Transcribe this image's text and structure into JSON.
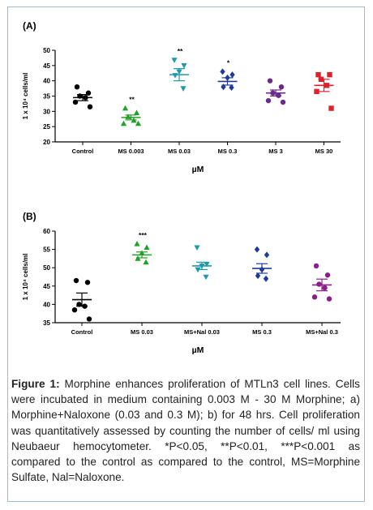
{
  "chart_data": [
    {
      "type": "scatter",
      "panel": "(A)",
      "ylabel": "1 x 10⁴ cells/ml",
      "xlabel": "µM",
      "ylim": [
        20,
        50
      ],
      "yticks": [
        20,
        25,
        30,
        35,
        40,
        45,
        50
      ],
      "categories": [
        "Control",
        "MS 0.003",
        "MS 0.03",
        "MS 0.3",
        "MS 3",
        "MS 30"
      ],
      "colors": [
        "#000000",
        "#22a02a",
        "#1e9aa8",
        "#1f3b9a",
        "#6a2a8a",
        "#e0202a"
      ],
      "markers": [
        "circle",
        "triangle-up",
        "triangle-down",
        "diamond",
        "circle",
        "square"
      ],
      "means": [
        34.5,
        28.0,
        42.0,
        39.8,
        36.0,
        38.5
      ],
      "sems": [
        1.0,
        0.8,
        2.0,
        1.2,
        1.0,
        2.0
      ],
      "significance": [
        "",
        "**",
        "**",
        "*",
        "",
        ""
      ],
      "points": [
        [
          38.0,
          36.0,
          35.0,
          34.5,
          33.0,
          31.5
        ],
        [
          31.0,
          29.5,
          28.2,
          27.0,
          26.0,
          26.0
        ],
        [
          46.8,
          45.0,
          43.0,
          41.8,
          37.5
        ],
        [
          43.0,
          42.0,
          41.0,
          38.0,
          37.8
        ],
        [
          40.0,
          38.0,
          36.0,
          35.2,
          33.5,
          33.0
        ],
        [
          42.0,
          42.0,
          40.5,
          38.5,
          36.5,
          31.0
        ]
      ]
    },
    {
      "type": "scatter",
      "panel": "(B)",
      "ylabel": "1 x 10⁴ cells/ml",
      "xlabel": "µM",
      "ylim": [
        35,
        60
      ],
      "yticks": [
        35,
        40,
        45,
        50,
        55,
        60
      ],
      "categories": [
        "Control",
        "MS 0.03",
        "MS+Nal 0.03",
        "MS 0.3",
        "MS+Nal 0.3"
      ],
      "colors": [
        "#000000",
        "#22a02a",
        "#1e9aa8",
        "#1f3b9a",
        "#8a1f8a"
      ],
      "markers": [
        "circle",
        "triangle-up",
        "triangle-down",
        "diamond",
        "circle"
      ],
      "means": [
        41.3,
        53.5,
        50.5,
        49.8,
        45.3
      ],
      "sems": [
        1.8,
        0.8,
        1.0,
        1.3,
        1.6
      ],
      "significance": [
        "",
        "***",
        "",
        "",
        ""
      ],
      "points": [
        [
          46.5,
          46.0,
          40.0,
          39.5,
          38.5,
          36.0
        ],
        [
          56.5,
          55.5,
          54.0,
          52.5,
          51.5
        ],
        [
          55.5,
          51.0,
          50.5,
          49.5,
          47.5
        ],
        [
          55.0,
          53.5,
          49.5,
          47.8,
          47.0
        ],
        [
          50.5,
          48.0,
          45.5,
          44.5,
          42.0,
          41.5
        ]
      ]
    }
  ],
  "caption": {
    "lead": "Figure 1:",
    "text": " Morphine enhances proliferation of MTLn3 cell lines. Cells were incubated in medium containing 0.003 M - 30  M Morphine; a) Morphine+Naloxone (0.03 and 0.3 M); b) for 48 hrs. Cell proliferation was quantitatively assessed by counting the number of cells/ ml using Neubaeur hemocytometer. *P<0.05, **P<0.01, ***P<0.001 as compared to the control as compared to the control, MS=Morphine Sulfate, Nal=Naloxone."
  }
}
